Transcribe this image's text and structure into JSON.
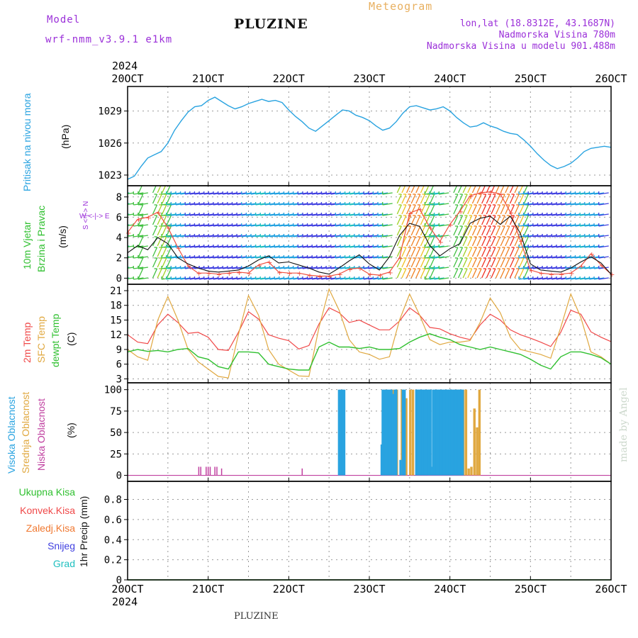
{
  "header": {
    "model_label": "Model",
    "model_name": "wrf-nmm_v3.9.1 e1km",
    "title": "PLUZINE",
    "meteogram": "Meteogram",
    "lonlat": "lon,lat (18.8312E, 43.1687N)",
    "altitude": "Nadmorska Visina 780m",
    "model_altitude": "Nadmorska Visina u modelu 901.488m",
    "footer": "PLUZINE",
    "watermark": "made by Angel"
  },
  "colors": {
    "pressure": "#29a3e0",
    "wind_speed": "#111111",
    "gust": "#f05040",
    "temp2m": "#f04848",
    "sfc_temp": "#e0a840",
    "dewpoint": "#30c030",
    "cloud_high": "#29a3e0",
    "cloud_mid": "#e0a840",
    "cloud_low": "#c040a0",
    "precip_total": "#30c030",
    "precip_conv": "#f04848",
    "precip_frozen": "#f07830",
    "precip_snow": "#4040e0",
    "precip_hail": "#20c0c0",
    "axis": "#000000",
    "grid": "#999999"
  },
  "panel_labels": {
    "pressure": [
      "Pritisak na nivou mora",
      "(hPa)"
    ],
    "wind": [
      "10m Vjetar",
      "Brzina i Pravac",
      "(m/s)"
    ],
    "wind_rose": "W <-|-> E",
    "wind_rose2": "S <-|-> N",
    "temp": [
      "2m Temp",
      "SFC Temp",
      "dewpt Temp",
      "(C)"
    ],
    "cloud": [
      "Visoka Oblacnost",
      "Srednja Oblacnost",
      "Niska Oblacnost",
      "(%)"
    ],
    "precip": [
      "1hr Precip (mm)"
    ],
    "precip_legend": [
      "Ukupna Kisa",
      "Konvek.Kisa",
      "Zaledj.Kisa",
      "Snijeg",
      "Grad"
    ]
  },
  "chart_data": [
    {
      "type": "line",
      "title": "",
      "ylabel": "Pritisak na nivou mora (hPa)",
      "x_unit": "hours since 20 OCT 2024 00Z",
      "x_ticks": [
        "20OCT",
        "21OCT",
        "22OCT",
        "23OCT",
        "24OCT",
        "25OCT",
        "26OCT"
      ],
      "x_year": "2024",
      "xlim": [
        0,
        144
      ],
      "y_ticks": [
        1023,
        1026,
        1029
      ],
      "ylim": [
        1022,
        1031.3
      ],
      "series": [
        {
          "name": "pressure",
          "x": [
            0,
            2,
            4,
            6,
            8,
            10,
            12,
            14,
            16,
            18,
            20,
            22,
            24,
            26,
            28,
            30,
            32,
            34,
            36,
            38,
            40,
            42,
            44,
            46,
            48,
            50,
            52,
            54,
            56,
            58,
            60,
            62,
            64,
            66,
            68,
            70,
            72,
            74,
            76,
            78,
            80,
            82,
            84,
            86,
            88,
            90,
            92,
            94,
            96,
            98,
            100,
            102,
            104,
            106,
            108,
            110,
            112,
            114,
            116,
            118,
            120,
            122,
            124,
            126,
            128,
            130,
            132,
            134,
            136,
            138,
            140,
            142,
            144
          ],
          "values": [
            1022.6,
            1022.9,
            1023.8,
            1024.6,
            1024.9,
            1025.2,
            1026.0,
            1027.2,
            1028.1,
            1028.9,
            1029.4,
            1029.5,
            1030.0,
            1030.3,
            1029.9,
            1029.5,
            1029.2,
            1029.4,
            1029.7,
            1029.9,
            1030.1,
            1029.9,
            1030.0,
            1029.8,
            1029.1,
            1028.5,
            1028.0,
            1027.4,
            1027.1,
            1027.6,
            1028.1,
            1028.6,
            1029.1,
            1029.0,
            1028.6,
            1028.4,
            1028.1,
            1027.6,
            1027.2,
            1027.4,
            1028.0,
            1028.8,
            1029.4,
            1029.5,
            1029.3,
            1029.1,
            1029.2,
            1029.4,
            1029.0,
            1028.4,
            1027.9,
            1027.5,
            1027.6,
            1027.9,
            1027.6,
            1027.4,
            1027.1,
            1026.9,
            1026.8,
            1026.3,
            1025.7,
            1025.0,
            1024.4,
            1023.9,
            1023.6,
            1023.8,
            1024.1,
            1024.6,
            1025.2,
            1025.5,
            1025.6,
            1025.7,
            1025.6
          ]
        }
      ]
    },
    {
      "type": "line",
      "title": "",
      "ylabel": "10m Vjetar Brzina i Pravac (m/s)",
      "xlim": [
        0,
        144
      ],
      "y_ticks": [
        0,
        2,
        4,
        6,
        8
      ],
      "ylim": [
        -0.6,
        9.1
      ],
      "series": [
        {
          "name": "wind speed",
          "x": [
            0,
            3,
            6,
            9,
            12,
            15,
            18,
            21,
            24,
            27,
            30,
            33,
            36,
            39,
            42,
            45,
            48,
            51,
            54,
            57,
            60,
            63,
            66,
            69,
            72,
            75,
            78,
            81,
            84,
            87,
            90,
            93,
            96,
            99,
            102,
            105,
            108,
            111,
            114,
            117,
            120,
            123,
            126,
            129,
            132,
            135,
            138,
            141,
            144
          ],
          "values": [
            2.5,
            3.2,
            2.8,
            4.0,
            3.4,
            2.0,
            1.4,
            1.0,
            0.7,
            0.6,
            0.7,
            0.8,
            1.2,
            1.8,
            2.2,
            1.5,
            1.6,
            1.3,
            1.0,
            0.6,
            0.4,
            1.0,
            1.7,
            2.3,
            1.4,
            0.8,
            2.1,
            4.2,
            5.4,
            5.1,
            3.2,
            2.2,
            2.9,
            3.4,
            5.4,
            5.9,
            6.1,
            5.3,
            6.1,
            4.4,
            1.4,
            0.8,
            0.7,
            0.6,
            1.0,
            1.6,
            2.1,
            1.5,
            0.4
          ]
        },
        {
          "name": "gust",
          "x": [
            0,
            3,
            6,
            9,
            12,
            15,
            18,
            21,
            24,
            27,
            30,
            33,
            36,
            39,
            42,
            45,
            48,
            51,
            54,
            57,
            60,
            63,
            66,
            69,
            72,
            75,
            78,
            81,
            84,
            87,
            90,
            93,
            96,
            99,
            102,
            105,
            108,
            111,
            114,
            117,
            120,
            123,
            126,
            129,
            132,
            135,
            138,
            141,
            144
          ],
          "values": [
            4.5,
            5.8,
            6.0,
            6.5,
            5.0,
            3.0,
            1.2,
            0.5,
            0.5,
            0.4,
            0.5,
            0.6,
            0.5,
            1.3,
            1.6,
            0.6,
            0.5,
            0.5,
            0.3,
            0.2,
            0.2,
            0.4,
            0.9,
            1.0,
            0.4,
            0.3,
            0.6,
            2.0,
            6.4,
            6.8,
            5.0,
            3.6,
            5.3,
            6.6,
            8.1,
            8.4,
            8.5,
            8.3,
            6.5,
            3.7,
            0.8,
            0.5,
            0.4,
            0.4,
            0.5,
            1.2,
            2.4,
            1.3,
            0.4
          ]
        }
      ]
    },
    {
      "type": "line",
      "title": "",
      "ylabel": "(C)",
      "xlim": [
        0,
        144
      ],
      "y_ticks": [
        3,
        6,
        9,
        12,
        15,
        18,
        21
      ],
      "ylim": [
        2.2,
        22.3
      ],
      "series": [
        {
          "name": "2m Temp",
          "x": [
            0,
            3,
            6,
            9,
            12,
            15,
            18,
            21,
            24,
            27,
            30,
            33,
            36,
            39,
            42,
            45,
            48,
            51,
            54,
            57,
            60,
            63,
            66,
            69,
            72,
            75,
            78,
            81,
            84,
            87,
            90,
            93,
            96,
            99,
            102,
            105,
            108,
            111,
            114,
            117,
            120,
            123,
            126,
            129,
            132,
            135,
            138,
            141,
            144
          ],
          "values": [
            12.0,
            10.5,
            10.2,
            14.0,
            16.2,
            14.5,
            12.3,
            12.5,
            11.5,
            9.0,
            8.8,
            12.5,
            16.7,
            15.2,
            12.0,
            11.3,
            10.8,
            9.1,
            9.8,
            14.2,
            17.5,
            16.5,
            14.5,
            15.0,
            14.0,
            13.0,
            13.0,
            14.8,
            17.5,
            16.0,
            13.5,
            13.2,
            12.2,
            11.5,
            11.0,
            14.0,
            16.2,
            15.0,
            13.0,
            12.0,
            11.3,
            10.5,
            9.6,
            12.5,
            17.0,
            16.2,
            12.6,
            11.5,
            10.6
          ]
        },
        {
          "name": "SFC Temp",
          "x": [
            0,
            3,
            6,
            9,
            12,
            15,
            18,
            21,
            24,
            27,
            30,
            33,
            36,
            39,
            42,
            45,
            48,
            51,
            54,
            57,
            60,
            63,
            66,
            69,
            72,
            75,
            78,
            81,
            84,
            87,
            90,
            93,
            96,
            99,
            102,
            105,
            108,
            111,
            114,
            117,
            120,
            123,
            126,
            129,
            132,
            135,
            138,
            141,
            144
          ],
          "values": [
            9.0,
            7.5,
            6.8,
            15.0,
            19.8,
            15.0,
            9.0,
            6.5,
            5.0,
            3.5,
            3.2,
            12.0,
            20.0,
            16.0,
            9.0,
            6.0,
            4.8,
            3.6,
            3.5,
            13.5,
            21.3,
            17.0,
            11.0,
            8.5,
            8.0,
            7.0,
            7.5,
            15.0,
            20.3,
            16.0,
            11.0,
            10.0,
            10.5,
            10.5,
            10.8,
            14.5,
            19.5,
            16.5,
            11.5,
            9.0,
            8.5,
            8.0,
            7.2,
            13.5,
            20.3,
            15.5,
            8.5,
            7.5,
            6.0
          ]
        },
        {
          "name": "dewpt Temp",
          "x": [
            0,
            3,
            6,
            9,
            12,
            15,
            18,
            21,
            24,
            27,
            30,
            33,
            36,
            39,
            42,
            45,
            48,
            51,
            54,
            57,
            60,
            63,
            66,
            69,
            72,
            75,
            78,
            81,
            84,
            87,
            90,
            93,
            96,
            99,
            102,
            105,
            108,
            111,
            114,
            117,
            120,
            123,
            126,
            129,
            132,
            135,
            138,
            141,
            144
          ],
          "values": [
            8.5,
            9.0,
            8.6,
            8.8,
            8.5,
            9.0,
            9.2,
            7.5,
            7.0,
            5.5,
            5.0,
            8.5,
            8.5,
            8.3,
            6.0,
            5.5,
            5.0,
            4.8,
            4.8,
            9.5,
            10.5,
            9.5,
            9.5,
            9.2,
            9.5,
            9.0,
            9.0,
            9.2,
            10.5,
            11.5,
            12.2,
            11.5,
            11.0,
            10.0,
            9.5,
            9.0,
            9.5,
            9.0,
            8.5,
            8.0,
            7.0,
            5.8,
            5.0,
            7.5,
            8.5,
            8.5,
            8.0,
            7.3,
            6.0
          ]
        }
      ]
    },
    {
      "type": "bar",
      "title": "",
      "ylabel": "(%)",
      "xlim": [
        0,
        144
      ],
      "y_ticks": [
        0,
        25,
        50,
        75,
        100
      ],
      "ylim": [
        -7,
        108
      ],
      "series": [
        {
          "name": "Visoka Oblacnost",
          "x": [
            63,
            63.5,
            64,
            64.5,
            75.7,
            76.0,
            76.4,
            77.0,
            77.3,
            77.7,
            78.2,
            78.6,
            79.1,
            79.6,
            80.0,
            81.3,
            82.0,
            82.5,
            86.0,
            86.3,
            86.7,
            87.0,
            87.4,
            87.8,
            88.2,
            88.6,
            89.0,
            89.4,
            89.8,
            90.2,
            90.6,
            91.0,
            91.4,
            91.8,
            92.2,
            92.6,
            93.0,
            93.4,
            93.8,
            94.2,
            94.6,
            95.0,
            95.4,
            95.8,
            96.2,
            96.6,
            97.0,
            97.4,
            97.8,
            98.2,
            98.6,
            99.0,
            99.4,
            99.8
          ],
          "values": [
            100,
            100,
            100,
            100,
            36,
            100,
            100,
            100,
            100,
            100,
            100,
            100,
            95,
            100,
            100,
            18,
            100,
            100,
            100,
            100,
            100,
            100,
            100,
            100,
            100,
            100,
            100,
            100,
            100,
            100,
            10,
            100,
            100,
            100,
            100,
            100,
            100,
            100,
            100,
            100,
            100,
            100,
            100,
            100,
            100,
            100,
            100,
            100,
            100,
            100,
            100,
            100,
            100,
            100
          ]
        },
        {
          "name": "Srednja Oblacnost",
          "x": [
            76.6,
            77.4,
            78.0,
            78.8,
            79.3,
            80.2,
            81.7,
            83.0,
            84.2,
            85.0,
            90.0,
            97.6,
            98.4,
            99.2,
            100.0,
            100.8,
            101.6,
            102.4,
            103.3,
            104.1,
            104.8
          ],
          "values": [
            100,
            98,
            95,
            100,
            100,
            100,
            100,
            90,
            100,
            100,
            100,
            100,
            100,
            100,
            100,
            100,
            8,
            10,
            78,
            56,
            100
          ]
        },
        {
          "name": "Niska Oblacnost",
          "x": [
            21.2,
            21.8,
            23.4,
            24.0,
            24.6,
            26.0,
            26.6,
            28.0,
            52.0
          ],
          "values": [
            10,
            10,
            10,
            10,
            10,
            10,
            10,
            8,
            8
          ]
        }
      ]
    },
    {
      "type": "line",
      "title": "",
      "ylabel": "1hr Precip (mm)",
      "xlim": [
        0,
        144
      ],
      "y_ticks": [
        0,
        0.2,
        0.4,
        0.6,
        0.8
      ],
      "ylim": [
        0,
        0.98
      ],
      "series": [
        {
          "name": "Ukupna Kisa",
          "x": [
            0,
            144
          ],
          "values": [
            0,
            0
          ]
        }
      ]
    }
  ]
}
